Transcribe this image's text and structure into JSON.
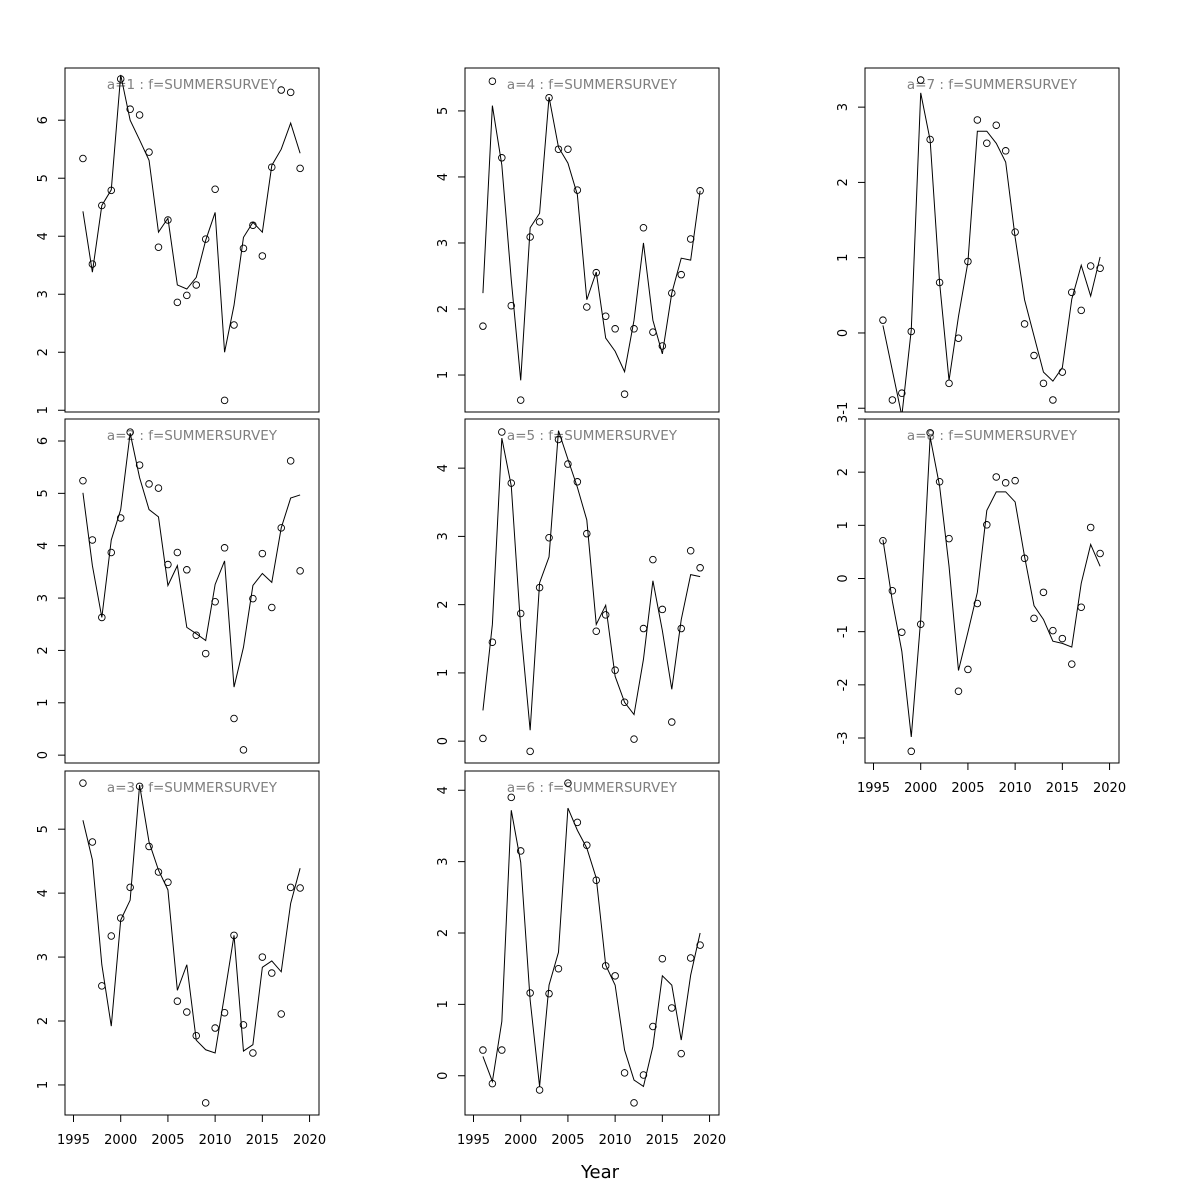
{
  "xlabel": "Year",
  "chart_data": [
    {
      "type": "line",
      "title": "a=1  :  f=SUMMERSURVEY",
      "x": [
        1996,
        1997,
        1998,
        1999,
        2000,
        2001,
        2002,
        2003,
        2004,
        2005,
        2006,
        2007,
        2008,
        2009,
        2010,
        2011,
        2012,
        2013,
        2014,
        2015,
        2016,
        2017,
        2018,
        2019
      ],
      "series": [
        {
          "style": "points",
          "color": "#000000",
          "values": [
            5.34,
            3.52,
            4.53,
            4.79,
            6.71,
            6.19,
            6.09,
            5.45,
            3.81,
            4.28,
            2.86,
            2.98,
            3.16,
            3.95,
            4.81,
            1.17,
            2.47,
            3.79,
            4.19,
            3.66,
            5.19,
            6.52,
            6.48,
            5.17
          ]
        },
        {
          "style": "line",
          "color": "#000000",
          "values": [
            4.43,
            3.38,
            4.53,
            4.8,
            6.78,
            6.0,
            5.66,
            5.31,
            4.07,
            4.31,
            3.16,
            3.09,
            3.29,
            3.93,
            4.41,
            2.0,
            2.81,
            3.98,
            4.24,
            4.07,
            5.22,
            5.5,
            5.95,
            5.43
          ]
        }
      ],
      "xlim": [
        1994.1,
        2021.0
      ],
      "ylim": [
        0.97,
        6.9
      ],
      "yticks": [
        1,
        2,
        3,
        4,
        5,
        6
      ]
    },
    {
      "type": "line",
      "title": "a=2  :  f=SUMMERSURVEY",
      "x": [
        1996,
        1997,
        1998,
        1999,
        2000,
        2001,
        2002,
        2003,
        2004,
        2005,
        2006,
        2007,
        2008,
        2009,
        2010,
        2011,
        2012,
        2013,
        2014,
        2015,
        2016,
        2017,
        2018,
        2019
      ],
      "series": [
        {
          "style": "points",
          "color": "#000000",
          "values": [
            5.24,
            4.11,
            2.63,
            3.87,
            4.53,
            6.17,
            5.54,
            5.18,
            5.1,
            3.64,
            3.87,
            3.54,
            2.29,
            1.94,
            2.93,
            3.96,
            0.7,
            0.1,
            2.99,
            3.85,
            2.82,
            4.34,
            5.62,
            3.52
          ]
        },
        {
          "style": "line",
          "color": "#000000",
          "values": [
            5.01,
            3.62,
            2.63,
            4.11,
            4.69,
            6.15,
            5.3,
            4.69,
            4.55,
            3.24,
            3.62,
            2.44,
            2.32,
            2.19,
            3.26,
            3.71,
            1.3,
            2.06,
            3.24,
            3.47,
            3.3,
            4.34,
            4.91,
            4.97
          ]
        }
      ],
      "xlim": [
        1994.1,
        2021.0
      ],
      "ylim": [
        -0.15,
        6.42
      ],
      "yticks": [
        0,
        1,
        2,
        3,
        4,
        5,
        6
      ]
    },
    {
      "type": "line",
      "title": "a=3  :  f=SUMMERSURVEY",
      "x": [
        1996,
        1997,
        1998,
        1999,
        2000,
        2001,
        2002,
        2003,
        2004,
        2005,
        2006,
        2007,
        2008,
        2009,
        2010,
        2011,
        2012,
        2013,
        2014,
        2015,
        2016,
        2017,
        2018,
        2019
      ],
      "series": [
        {
          "style": "points",
          "color": "#000000",
          "values": [
            5.72,
            4.8,
            2.55,
            3.33,
            3.61,
            4.09,
            5.67,
            4.73,
            4.33,
            4.17,
            2.31,
            2.14,
            1.77,
            0.72,
            1.89,
            2.13,
            3.34,
            1.94,
            1.5,
            3.0,
            2.75,
            2.11,
            4.09,
            4.08
          ]
        },
        {
          "style": "line",
          "color": "#000000",
          "values": [
            5.14,
            4.52,
            2.88,
            1.92,
            3.58,
            3.89,
            5.69,
            4.8,
            4.36,
            4.05,
            2.48,
            2.88,
            1.7,
            1.55,
            1.5,
            2.41,
            3.34,
            1.53,
            1.63,
            2.84,
            2.94,
            2.77,
            3.84,
            4.39
          ]
        }
      ],
      "xlim": [
        1994.1,
        2021.0
      ],
      "ylim": [
        0.53,
        5.91
      ],
      "yticks": [
        1,
        2,
        3,
        4,
        5
      ],
      "xticks": [
        1995,
        2000,
        2005,
        2010,
        2015,
        2020
      ]
    },
    {
      "type": "line",
      "title": "a=4  :  f=SUMMERSURVEY",
      "x": [
        1996,
        1997,
        1998,
        1999,
        2000,
        2001,
        2002,
        2003,
        2004,
        2005,
        2006,
        2007,
        2008,
        2009,
        2010,
        2011,
        2012,
        2013,
        2014,
        2015,
        2016,
        2017,
        2018,
        2019
      ],
      "series": [
        {
          "style": "points",
          "color": "#000000",
          "values": [
            1.74,
            5.45,
            4.29,
            2.05,
            0.62,
            3.09,
            3.32,
            5.2,
            4.42,
            4.42,
            3.8,
            2.03,
            2.55,
            1.89,
            1.7,
            0.71,
            1.7,
            3.23,
            1.65,
            1.44,
            2.24,
            2.52,
            3.06,
            3.79
          ]
        },
        {
          "style": "line",
          "color": "#000000",
          "values": [
            2.24,
            5.08,
            4.18,
            2.44,
            0.92,
            3.23,
            3.45,
            5.21,
            4.45,
            4.21,
            3.73,
            2.14,
            2.56,
            1.56,
            1.36,
            1.05,
            1.83,
            3.0,
            1.83,
            1.32,
            2.24,
            2.77,
            2.74,
            3.79
          ]
        }
      ],
      "xlim": [
        1994.1,
        2021.0
      ],
      "ylim": [
        0.44,
        5.65
      ],
      "yticks": [
        1,
        2,
        3,
        4,
        5
      ]
    },
    {
      "type": "line",
      "title": "a=5  :  f=SUMMERSURVEY",
      "x": [
        1996,
        1997,
        1998,
        1999,
        2000,
        2001,
        2002,
        2003,
        2004,
        2005,
        2006,
        2007,
        2008,
        2009,
        2010,
        2011,
        2012,
        2013,
        2014,
        2015,
        2016,
        2017,
        2018,
        2019
      ],
      "series": [
        {
          "style": "points",
          "color": "#000000",
          "values": [
            0.04,
            1.45,
            4.53,
            3.78,
            1.87,
            -0.15,
            2.25,
            2.98,
            4.42,
            4.06,
            3.8,
            3.04,
            1.61,
            1.85,
            1.04,
            0.57,
            0.03,
            1.65,
            2.66,
            1.93,
            0.28,
            1.65,
            2.79,
            2.54
          ]
        },
        {
          "style": "line",
          "color": "#000000",
          "values": [
            0.45,
            1.71,
            4.44,
            3.74,
            1.66,
            0.16,
            2.32,
            2.7,
            4.55,
            4.13,
            3.72,
            3.24,
            1.71,
            1.99,
            0.95,
            0.57,
            0.39,
            1.2,
            2.35,
            1.62,
            0.76,
            1.78,
            2.44,
            2.41
          ]
        }
      ],
      "xlim": [
        1994.1,
        2021.0
      ],
      "ylim": [
        -0.32,
        4.72
      ],
      "yticks": [
        0,
        1,
        2,
        3,
        4
      ]
    },
    {
      "type": "line",
      "title": "a=6  :  f=SUMMERSURVEY",
      "x": [
        1996,
        1997,
        1998,
        1999,
        2000,
        2001,
        2002,
        2003,
        2004,
        2005,
        2006,
        2007,
        2008,
        2009,
        2010,
        2011,
        2012,
        2013,
        2014,
        2015,
        2016,
        2017,
        2018,
        2019
      ],
      "series": [
        {
          "style": "points",
          "color": "#000000",
          "values": [
            0.36,
            -0.11,
            0.36,
            3.9,
            3.15,
            1.16,
            -0.2,
            1.15,
            1.5,
            4.1,
            3.55,
            3.23,
            2.74,
            1.54,
            1.4,
            0.04,
            -0.38,
            0.01,
            0.69,
            1.64,
            0.95,
            0.31,
            1.65,
            1.83
          ]
        },
        {
          "style": "line",
          "color": "#000000",
          "values": [
            0.27,
            -0.08,
            0.76,
            3.72,
            2.99,
            1.06,
            -0.15,
            1.27,
            1.73,
            3.75,
            3.44,
            3.19,
            2.77,
            1.55,
            1.27,
            0.36,
            -0.06,
            -0.15,
            0.41,
            1.4,
            1.27,
            0.5,
            1.41,
            2.0
          ]
        }
      ],
      "xlim": [
        1994.1,
        2021.0
      ],
      "ylim": [
        -0.55,
        4.27
      ],
      "yticks": [
        0,
        1,
        2,
        3,
        4
      ],
      "xticks": [
        1995,
        2000,
        2005,
        2010,
        2015,
        2020
      ]
    },
    {
      "type": "line",
      "title": "a=7  :  f=SUMMERSURVEY",
      "x": [
        1996,
        1997,
        1998,
        1999,
        2000,
        2001,
        2002,
        2003,
        2004,
        2005,
        2006,
        2007,
        2008,
        2009,
        2010,
        2011,
        2012,
        2013,
        2014,
        2015,
        2016,
        2017,
        2018,
        2019
      ],
      "series": [
        {
          "style": "points",
          "color": "#000000",
          "values": [
            0.17,
            -0.89,
            -0.8,
            0.02,
            3.36,
            2.57,
            0.67,
            -0.67,
            -0.07,
            0.95,
            2.83,
            2.52,
            2.76,
            2.42,
            1.34,
            0.12,
            -0.3,
            -0.67,
            -0.89,
            -0.52,
            0.54,
            0.3,
            0.89,
            0.86
          ]
        },
        {
          "style": "line",
          "color": "#000000",
          "values": [
            0.1,
            -0.5,
            -1.1,
            0.04,
            3.19,
            2.56,
            0.67,
            -0.63,
            0.22,
            0.94,
            2.68,
            2.68,
            2.52,
            2.27,
            1.27,
            0.44,
            -0.04,
            -0.52,
            -0.64,
            -0.46,
            0.45,
            0.9,
            0.49,
            1.01
          ]
        }
      ],
      "xlim": [
        1994.1,
        2021.0
      ],
      "ylim": [
        -1.05,
        3.52
      ],
      "yticks": [
        -1,
        0,
        1,
        2,
        3
      ]
    },
    {
      "type": "line",
      "title": "a=8  :  f=SUMMERSURVEY",
      "x": [
        1996,
        1997,
        1998,
        1999,
        2000,
        2001,
        2002,
        2003,
        2004,
        2005,
        2006,
        2007,
        2008,
        2009,
        2010,
        2011,
        2012,
        2013,
        2014,
        2015,
        2016,
        2017,
        2018,
        2019
      ],
      "series": [
        {
          "style": "points",
          "color": "#000000",
          "values": [
            0.71,
            -0.23,
            -1.01,
            -3.25,
            -0.86,
            2.74,
            1.82,
            0.75,
            -2.12,
            -1.71,
            -0.47,
            1.01,
            1.91,
            1.8,
            1.84,
            0.38,
            -0.75,
            -0.26,
            -0.98,
            -1.13,
            -1.61,
            -0.54,
            0.96,
            0.47
          ]
        },
        {
          "style": "line",
          "color": "#000000",
          "values": [
            0.73,
            -0.43,
            -1.37,
            -2.98,
            -0.77,
            2.66,
            1.74,
            0.23,
            -1.73,
            -1.01,
            -0.26,
            1.28,
            1.63,
            1.63,
            1.44,
            0.41,
            -0.51,
            -0.77,
            -1.18,
            -1.22,
            -1.29,
            -0.09,
            0.64,
            0.23
          ]
        }
      ],
      "xlim": [
        1994.1,
        2021.0
      ],
      "ylim": [
        -3.47,
        3.0
      ],
      "yticks": [
        -3,
        -2,
        -1,
        0,
        1,
        2,
        3
      ],
      "xticks": [
        1995,
        2000,
        2005,
        2010,
        2015,
        2020
      ]
    }
  ]
}
